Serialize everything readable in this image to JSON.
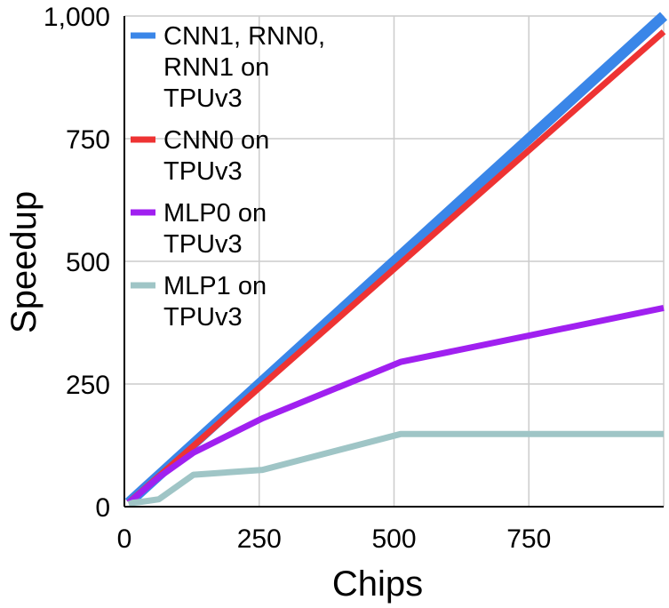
{
  "chart_data": {
    "type": "line",
    "title": "",
    "xlabel": "Chips",
    "ylabel": "Speedup",
    "xlim": [
      0,
      1000
    ],
    "ylim": [
      0,
      1000
    ],
    "xticks": [
      0,
      250,
      500,
      750
    ],
    "xtick_labels": [
      "0",
      "250",
      "500",
      "750"
    ],
    "yticks": [
      0,
      250,
      500,
      750,
      1000
    ],
    "ytick_labels": [
      "0",
      "250",
      "500",
      "750",
      "1,000"
    ],
    "grid": true,
    "legend_position": "top-left",
    "series": [
      {
        "name": "CNN1, RNN0, RNN1 on TPUv3",
        "name_lines": [
          "CNN1, RNN0,",
          "RNN1 on",
          "TPUv3"
        ],
        "color": "#3a86e8",
        "x": [
          8,
          16,
          32,
          64,
          128,
          256,
          512,
          1000
        ],
        "y": [
          8,
          16,
          32,
          64,
          128,
          256,
          512,
          1000
        ]
      },
      {
        "name": "CNN0 on TPUv3",
        "name_lines": [
          "CNN0 on",
          "TPUv3"
        ],
        "color": "#ee3333",
        "x": [
          8,
          16,
          32,
          64,
          128,
          256,
          512,
          1000
        ],
        "y": [
          8,
          16,
          31,
          62,
          124,
          248,
          496,
          968
        ]
      },
      {
        "name": "MLP0 on TPUv3",
        "name_lines": [
          "MLP0 on",
          "TPUv3"
        ],
        "color": "#a020f0",
        "x": [
          8,
          16,
          32,
          64,
          128,
          256,
          512,
          1000
        ],
        "y": [
          8,
          15,
          30,
          60,
          110,
          180,
          295,
          405
        ]
      },
      {
        "name": "MLP1 on TPUv3",
        "name_lines": [
          "MLP1 on",
          "TPUv3"
        ],
        "color": "#9fc5c6",
        "x": [
          8,
          16,
          32,
          64,
          128,
          256,
          512,
          1000
        ],
        "y": [
          5,
          8,
          10,
          15,
          65,
          75,
          148,
          148
        ]
      }
    ]
  }
}
